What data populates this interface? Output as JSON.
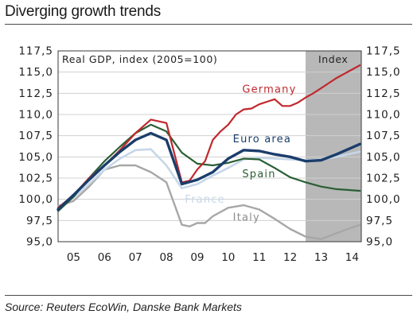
{
  "title": "Diverging growth trends",
  "source": "Source: Reuters EcoWin, Danske Bank Markets",
  "chart_data": {
    "type": "line",
    "subtitle": "Real GDP, index (2005=100)",
    "forecast_label": "Index",
    "xlabel": "",
    "ylabel": "",
    "x_ticks": [
      "05",
      "06",
      "07",
      "08",
      "09",
      "10",
      "11",
      "12",
      "13",
      "14"
    ],
    "x_range": [
      2005,
      2014.8
    ],
    "forecast_start": 2013,
    "ylim": [
      95,
      117.5
    ],
    "y_ticks": [
      "95,0",
      "97,5",
      "100,0",
      "102,5",
      "105,0",
      "107,5",
      "110,0",
      "112,5",
      "115,0",
      "117,5"
    ],
    "y_tick_values": [
      95,
      97.5,
      100,
      102.5,
      105,
      107.5,
      110,
      112.5,
      115,
      117.5
    ],
    "series": [
      {
        "name": "Germany",
        "color": "#c0282d",
        "x": [
          2005,
          2005.5,
          2006,
          2006.5,
          2007,
          2007.5,
          2008,
          2008.5,
          2009,
          2009.25,
          2009.5,
          2009.75,
          2010,
          2010.25,
          2010.5,
          2010.75,
          2011,
          2011.25,
          2011.5,
          2011.75,
          2012,
          2012.25,
          2012.5,
          2012.75,
          2013,
          2013.25,
          2013.5,
          2013.75,
          2014,
          2014.25,
          2014.5,
          2014.75
        ],
        "y": [
          99.0,
          100.5,
          102.5,
          104.0,
          105.8,
          107.8,
          109.4,
          109.0,
          102.0,
          102.2,
          103.5,
          104.5,
          107.0,
          108.0,
          108.8,
          110.0,
          110.6,
          110.7,
          111.2,
          111.5,
          111.8,
          111.0,
          111.0,
          111.4,
          112.0,
          112.5,
          113.1,
          113.7,
          114.3,
          114.8,
          115.3,
          115.8
        ]
      },
      {
        "name": "Euro area",
        "color": "#1a3d6b",
        "x": [
          2005,
          2005.5,
          2006,
          2006.5,
          2007,
          2007.5,
          2008,
          2008.5,
          2009,
          2009.5,
          2010,
          2010.5,
          2011,
          2011.5,
          2012,
          2012.5,
          2013,
          2013.5,
          2014,
          2014.75
        ],
        "y": [
          98.8,
          100.5,
          102.3,
          104.0,
          105.6,
          107.0,
          107.8,
          107.0,
          101.8,
          102.3,
          103.2,
          104.8,
          105.8,
          105.7,
          105.3,
          105.0,
          104.5,
          104.6,
          105.3,
          106.5
        ]
      },
      {
        "name": "Spain",
        "color": "#2a5e34",
        "x": [
          2005,
          2005.5,
          2006,
          2006.5,
          2007,
          2007.5,
          2008,
          2008.5,
          2009,
          2009.5,
          2010,
          2010.5,
          2011,
          2011.5,
          2012,
          2012.5,
          2013,
          2013.5,
          2014,
          2014.75
        ],
        "y": [
          98.6,
          100.3,
          102.5,
          104.5,
          106.2,
          107.8,
          108.8,
          108.0,
          105.5,
          104.2,
          104.0,
          104.3,
          104.8,
          104.7,
          103.7,
          102.6,
          102.0,
          101.5,
          101.2,
          101.0
        ]
      },
      {
        "name": "France",
        "color": "#c6d7e8",
        "x": [
          2005,
          2005.5,
          2006,
          2006.5,
          2007,
          2007.5,
          2008,
          2008.5,
          2009,
          2009.5,
          2010,
          2010.5,
          2011,
          2011.5,
          2012,
          2012.5,
          2013,
          2013.5,
          2014,
          2014.75
        ],
        "y": [
          99.0,
          100.2,
          101.8,
          103.5,
          104.8,
          105.8,
          105.9,
          104.0,
          101.3,
          101.8,
          102.8,
          103.7,
          104.7,
          104.9,
          104.8,
          104.7,
          104.6,
          104.7,
          105.0,
          105.6
        ]
      },
      {
        "name": "Italy",
        "color": "#a7a7a7",
        "x": [
          2005,
          2005.5,
          2006,
          2006.5,
          2007,
          2007.5,
          2008,
          2008.5,
          2009,
          2009.25,
          2009.5,
          2009.75,
          2010,
          2010.5,
          2011,
          2011.5,
          2012,
          2012.5,
          2013,
          2013.5,
          2014,
          2014.75
        ],
        "y": [
          99.2,
          99.8,
          101.5,
          103.5,
          104.0,
          104.0,
          103.2,
          102.0,
          97.0,
          96.8,
          97.2,
          97.2,
          98.0,
          99.0,
          99.3,
          98.8,
          97.7,
          96.5,
          95.6,
          95.3,
          96.0,
          97.0
        ]
      }
    ]
  }
}
